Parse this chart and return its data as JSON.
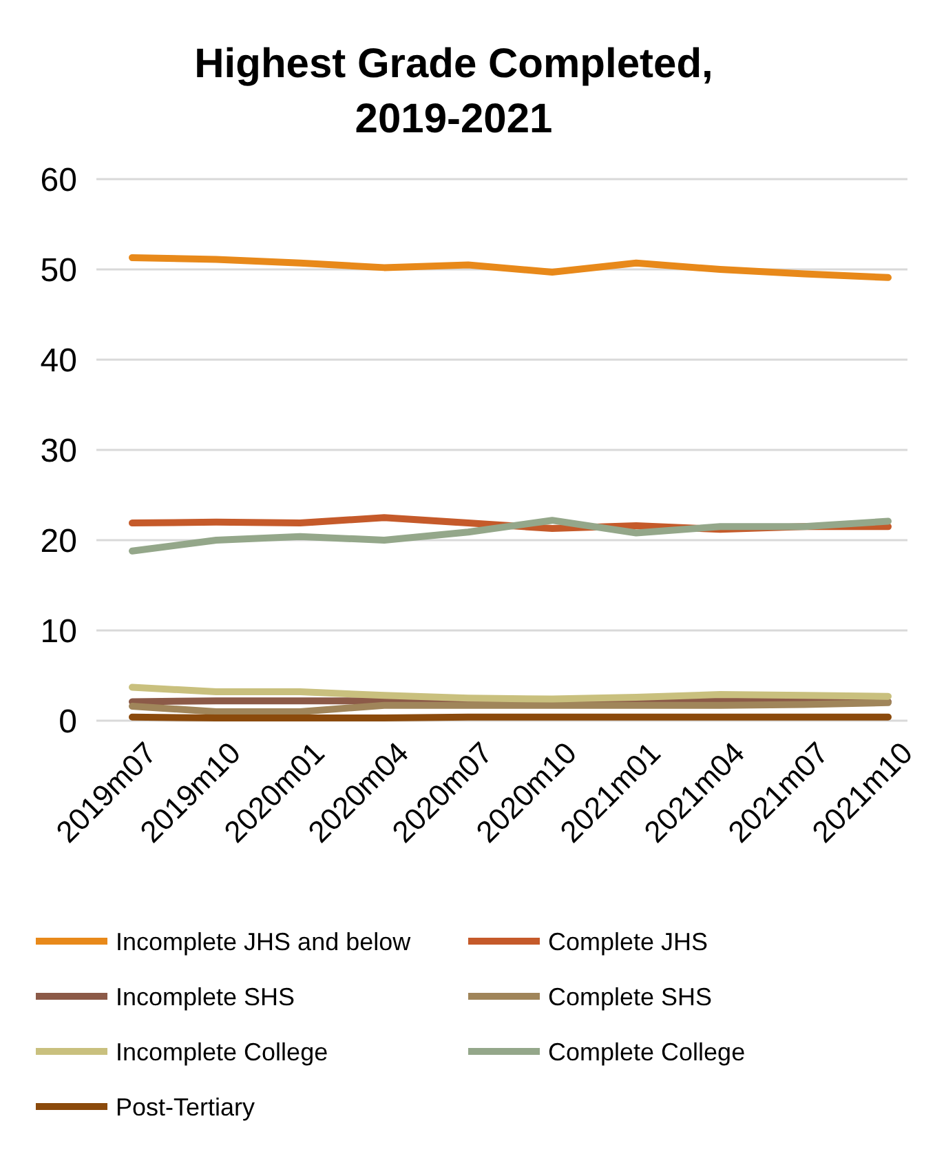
{
  "chart_data": {
    "type": "line",
    "title": "Highest Grade Completed, 2019-2021",
    "categories": [
      "2019m07",
      "2019m10",
      "2020m01",
      "2020m04",
      "2020m07",
      "2020m10",
      "2021m01",
      "2021m04",
      "2021m07",
      "2021m10"
    ],
    "ylim": [
      0,
      60
    ],
    "yticks": [
      0,
      10,
      20,
      30,
      40,
      50,
      60
    ],
    "grid": "y",
    "legend": "bottom",
    "marker": "none",
    "series": [
      {
        "name": "Incomplete JHS and below",
        "color": "#e8891a",
        "values": [
          51.3,
          51.1,
          50.7,
          50.2,
          50.5,
          49.7,
          50.7,
          50.0,
          49.5,
          49.1
        ]
      },
      {
        "name": "Complete JHS",
        "color": "#c55a2a",
        "values": [
          21.9,
          22.0,
          21.9,
          22.5,
          21.9,
          21.3,
          21.6,
          21.2,
          21.5,
          21.5
        ]
      },
      {
        "name": "Incomplete SHS",
        "color": "#8c5a48",
        "values": [
          2.1,
          2.2,
          2.2,
          2.2,
          2.0,
          2.0,
          2.0,
          2.2,
          2.2,
          2.1
        ]
      },
      {
        "name": "Complete SHS",
        "color": "#a0855a",
        "values": [
          1.6,
          1.0,
          1.0,
          1.7,
          1.7,
          1.7,
          1.7,
          1.7,
          1.8,
          2.0
        ]
      },
      {
        "name": "Incomplete College",
        "color": "#c9c07e",
        "values": [
          3.7,
          3.2,
          3.2,
          2.8,
          2.5,
          2.4,
          2.6,
          2.9,
          2.8,
          2.7
        ]
      },
      {
        "name": "Complete College",
        "color": "#94a78a",
        "values": [
          18.8,
          20.0,
          20.4,
          20.0,
          20.9,
          22.2,
          20.8,
          21.5,
          21.5,
          22.1
        ]
      },
      {
        "name": "Post-Tertiary",
        "color": "#8b4a0c",
        "values": [
          0.4,
          0.3,
          0.3,
          0.3,
          0.4,
          0.4,
          0.4,
          0.4,
          0.4,
          0.4
        ]
      }
    ]
  }
}
